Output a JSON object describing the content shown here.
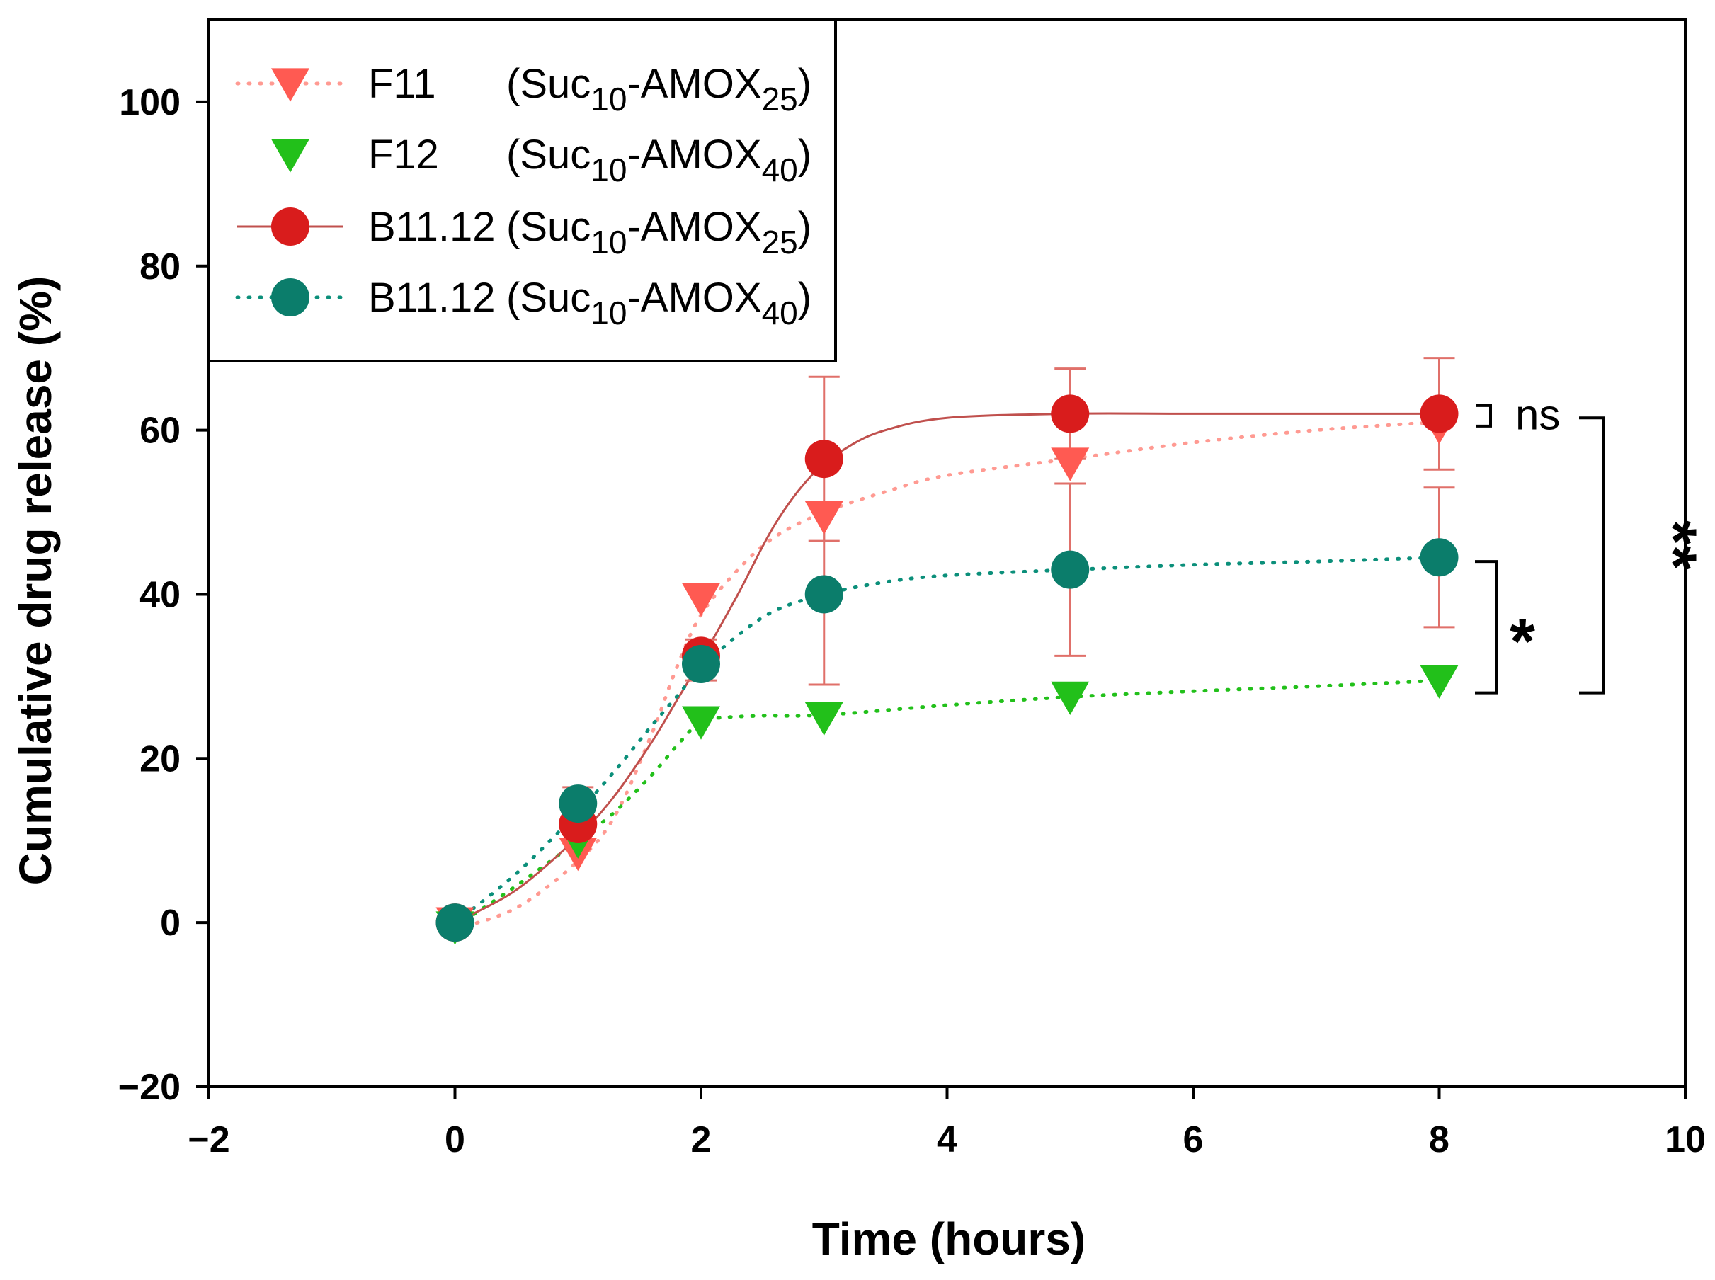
{
  "chart_data": {
    "type": "line",
    "xlabel": "Time (hours)",
    "ylabel": "Cumulative drug release (%)",
    "xlim": [
      -2,
      10
    ],
    "ylim": [
      -20,
      110
    ],
    "xticks": [
      -2,
      0,
      2,
      4,
      6,
      8,
      10
    ],
    "yticks": [
      -20,
      0,
      20,
      40,
      60,
      80,
      100
    ],
    "x_tick_labels": [
      "−2",
      "0",
      "2",
      "4",
      "6",
      "8",
      "10"
    ],
    "y_tick_labels": [
      "−20",
      "0",
      "20",
      "40",
      "60",
      "80",
      "100"
    ],
    "grid": false,
    "legend_position": "top-left",
    "series": [
      {
        "id": "f11",
        "code": "F11",
        "label_pre": "(Suc",
        "sub1": "10",
        "label_mid": "-AMOX",
        "sub2": "25",
        "label_post": ")",
        "marker": "triangle-down",
        "color": "#ff5a52",
        "line_color": "#ff9a92",
        "line_style": "dotted",
        "x": [
          0,
          1,
          2,
          3,
          5,
          8
        ],
        "y": [
          0,
          8.5,
          39.5,
          49.5,
          56,
          60.5
        ],
        "err": [
          0,
          0,
          0,
          0,
          0,
          0
        ],
        "curve": [
          [
            0,
            -0.8
          ],
          [
            0.5,
            1.8
          ],
          [
            1,
            7.5
          ],
          [
            1.3,
            13
          ],
          [
            1.6,
            23
          ],
          [
            1.8,
            31
          ],
          [
            2,
            37.5
          ],
          [
            2.3,
            43
          ],
          [
            2.6,
            47
          ],
          [
            3,
            50
          ],
          [
            3.5,
            52.5
          ],
          [
            4,
            54.5
          ],
          [
            5,
            56.5
          ],
          [
            6,
            58.5
          ],
          [
            7,
            60
          ],
          [
            8,
            61
          ]
        ]
      },
      {
        "id": "f12",
        "code": "F12",
        "label_pre": "(Suc",
        "sub1": "10",
        "label_mid": "-AMOX",
        "sub2": "40",
        "label_post": ")",
        "marker": "triangle-down",
        "color": "#22c01a",
        "line_color": "#22c01a",
        "line_style": "dotted",
        "x": [
          0,
          1,
          2,
          3,
          5,
          8
        ],
        "y": [
          -0.5,
          10,
          24.5,
          25,
          27.5,
          29.5
        ],
        "err": [
          0,
          0,
          0,
          0,
          0,
          0
        ],
        "curve": [
          [
            0,
            -0.5
          ],
          [
            0.5,
            4.5
          ],
          [
            1,
            10
          ],
          [
            1.3,
            13.5
          ],
          [
            1.6,
            18
          ],
          [
            1.8,
            21.5
          ],
          [
            2,
            24.5
          ],
          [
            2.2,
            25
          ],
          [
            2.5,
            25.2
          ],
          [
            3,
            25.3
          ],
          [
            4,
            26.5
          ],
          [
            5,
            27.5
          ],
          [
            6,
            28.2
          ],
          [
            7,
            28.8
          ],
          [
            8,
            29.5
          ]
        ]
      },
      {
        "id": "b25",
        "code": "B11.12",
        "label_pre": "(Suc",
        "sub1": "10",
        "label_mid": "-AMOX",
        "sub2": "25",
        "label_post": ")",
        "marker": "circle",
        "color": "#d91c1c",
        "line_color": "#c0504d",
        "line_style": "solid",
        "x": [
          0,
          1,
          2,
          3,
          5,
          8
        ],
        "y": [
          0,
          12,
          32.5,
          56.5,
          62,
          62
        ],
        "err": [
          0,
          0,
          2,
          10,
          5.5,
          6.8
        ],
        "curve": [
          [
            0,
            0
          ],
          [
            0.5,
            4
          ],
          [
            1,
            10.5
          ],
          [
            1.3,
            15.5
          ],
          [
            1.6,
            22
          ],
          [
            1.8,
            27
          ],
          [
            2,
            32
          ],
          [
            2.3,
            40
          ],
          [
            2.6,
            48.5
          ],
          [
            2.9,
            54.5
          ],
          [
            3.2,
            58
          ],
          [
            3.5,
            60
          ],
          [
            4,
            61.5
          ],
          [
            5,
            62
          ],
          [
            6,
            62
          ],
          [
            8,
            62
          ]
        ]
      },
      {
        "id": "b40",
        "code": "B11.12",
        "label_pre": "(Suc",
        "sub1": "10",
        "label_mid": "-AMOX",
        "sub2": "40",
        "label_post": ")",
        "marker": "circle",
        "color": "#0b7d6b",
        "line_color": "#0b8f7a",
        "line_style": "dotted",
        "x": [
          0,
          1,
          2,
          3,
          5,
          8
        ],
        "y": [
          0,
          14.5,
          31.5,
          40,
          43,
          44.5
        ],
        "err": [
          0,
          2,
          2,
          11,
          10.5,
          8.5
        ],
        "curve": [
          [
            0,
            0
          ],
          [
            0.5,
            6
          ],
          [
            1,
            13.5
          ],
          [
            1.3,
            18.5
          ],
          [
            1.6,
            24
          ],
          [
            1.8,
            27.5
          ],
          [
            2,
            31
          ],
          [
            2.3,
            35
          ],
          [
            2.6,
            38
          ],
          [
            3,
            40
          ],
          [
            3.5,
            41.5
          ],
          [
            4,
            42.3
          ],
          [
            5,
            43
          ],
          [
            6,
            43.6
          ],
          [
            7,
            44
          ],
          [
            8,
            44.5
          ]
        ]
      }
    ],
    "annotations": [
      {
        "id": "ns",
        "text": "ns",
        "y_from": 60.5,
        "y_to": 63
      },
      {
        "id": "star1",
        "text": "*",
        "y_from": 28,
        "y_to": 44
      },
      {
        "id": "star2",
        "text": "**",
        "y_from": 28,
        "y_to": 61.5
      }
    ]
  }
}
